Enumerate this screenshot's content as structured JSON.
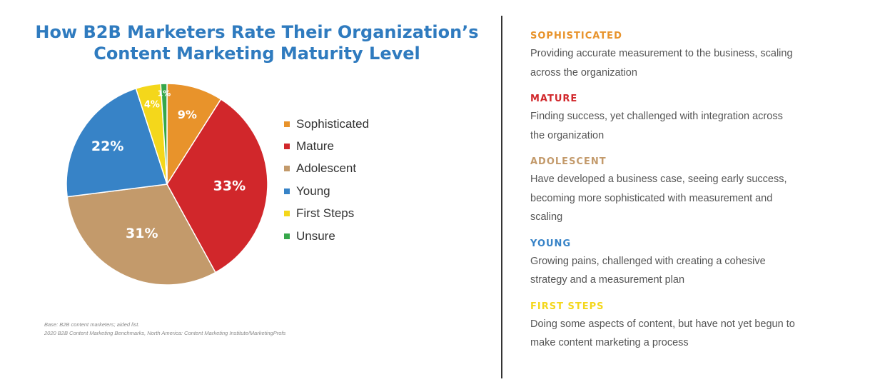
{
  "title": {
    "line1": "How B2B Marketers Rate Their Organization’s",
    "line2": "Content Marketing Maturity Level"
  },
  "chart_data": {
    "type": "pie",
    "title": "How B2B Marketers Rate Their Organization’s Content Marketing Maturity Level",
    "categories": [
      "Sophisticated",
      "Mature",
      "Adolescent",
      "Young",
      "First Steps",
      "Unsure"
    ],
    "values": [
      9,
      33,
      31,
      22,
      4,
      1
    ],
    "labels": [
      "9%",
      "33%",
      "31%",
      "22%",
      "4%",
      "1%"
    ],
    "colors": [
      "#e8932b",
      "#d1272b",
      "#c39a6b",
      "#3783c7",
      "#f4d71b",
      "#36a74a"
    ],
    "legend_position": "right"
  },
  "legend": [
    {
      "label": "Sophisticated",
      "color": "#e8932b"
    },
    {
      "label": "Mature",
      "color": "#d1272b"
    },
    {
      "label": "Adolescent",
      "color": "#c39a6b"
    },
    {
      "label": "Young",
      "color": "#3783c7"
    },
    {
      "label": "First Steps",
      "color": "#f4d71b"
    },
    {
      "label": "Unsure",
      "color": "#36a74a"
    }
  ],
  "footnote": {
    "line1": "Base: B2B content marketers; aided list.",
    "line2": "2020 B2B Content Marketing Benchmarks, North America: Content Marketing Institute/MarketingProfs"
  },
  "levels": [
    {
      "name": "SOPHISTICATED",
      "color": "#e8932b",
      "lines": [
        "Providing accurate measurement to the business, scaling",
        "across the organization"
      ]
    },
    {
      "name": "MATURE",
      "color": "#d1272b",
      "lines": [
        "Finding success, yet challenged with integration across",
        "the organization"
      ]
    },
    {
      "name": "ADOLESCENT",
      "color": "#c39a6b",
      "lines": [
        "Have developed a business case, seeing early success,",
        "becoming more sophisticated with measurement and",
        "scaling"
      ]
    },
    {
      "name": "YOUNG",
      "color": "#3783c7",
      "lines": [
        "Growing pains, challenged with creating a cohesive",
        "strategy and a measurement plan"
      ]
    },
    {
      "name": "FIRST STEPS",
      "color": "#f4d71b",
      "lines": [
        "Doing some aspects of content, but have not yet begun to",
        "make content marketing a process"
      ]
    }
  ]
}
